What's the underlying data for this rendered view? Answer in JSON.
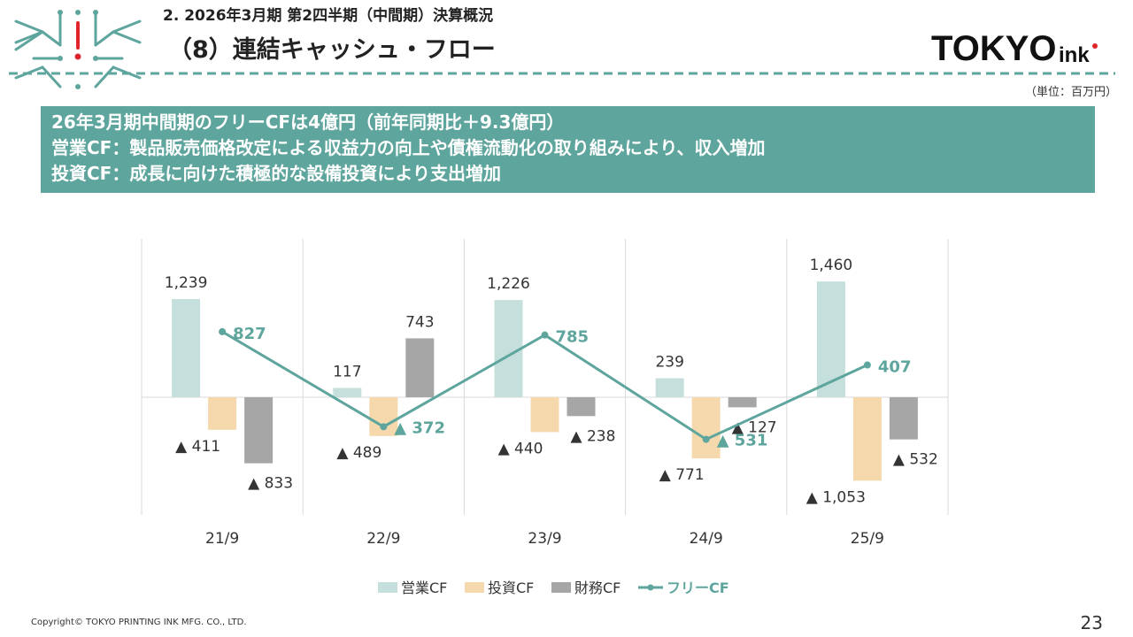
{
  "header": {
    "section": "2. 2026年3月期 第2四半期（中間期）決算概況",
    "title": "（8）連結キャッシュ・フロー",
    "brand_main": "TOKYO",
    "brand_sub": "ink",
    "unit": "（単位：百万円）"
  },
  "summary": {
    "line1": "26年3月期中間期のフリーCFは4億円（前年同期比＋9.3億円）",
    "line2": "営業CF：製品販売価格改定による収益力の向上や債権流動化の取り組みにより、収入増加",
    "line3": "投資CF：成長に向けた積極的な設備投資により支出増加"
  },
  "chart_data": {
    "type": "bar",
    "title": "",
    "categories": [
      "21/9",
      "22/9",
      "23/9",
      "24/9",
      "25/9"
    ],
    "series": [
      {
        "name": "営業CF",
        "kind": "bar",
        "color": "#c5e0dc",
        "values": [
          1239,
          117,
          1226,
          239,
          1460
        ],
        "labels": [
          "1,239",
          "117",
          "1,226",
          "239",
          "1,460"
        ]
      },
      {
        "name": "投資CF",
        "kind": "bar",
        "color": "#f5d9ad",
        "values": [
          -411,
          -489,
          -440,
          -771,
          -1053
        ],
        "labels": [
          "▲ 411",
          "▲ 489",
          "▲ 440",
          "▲ 771",
          "▲ 1,053"
        ]
      },
      {
        "name": "財務CF",
        "kind": "bar",
        "color": "#a6a6a6",
        "values": [
          -833,
          743,
          -238,
          -127,
          -532
        ],
        "labels": [
          "▲ 833",
          "743",
          "▲ 238",
          "▲ 127",
          "▲ 532"
        ]
      },
      {
        "name": "フリーCF",
        "kind": "line",
        "color": "#5ea59d",
        "values": [
          827,
          -372,
          785,
          -531,
          407
        ],
        "labels": [
          "827",
          "▲ 372",
          "785",
          "▲ 531",
          "407"
        ]
      }
    ],
    "ylim": [
      -1400,
      1950
    ],
    "legend_position": "bottom",
    "grid": "vertical-category-separators"
  },
  "colors": {
    "accent": "#5ea59d",
    "brand_red": "#e0262b",
    "text": "#222222"
  },
  "footer": {
    "copyright": "Copyright© TOKYO PRINTING INK MFG. CO., LTD.",
    "page": "23"
  }
}
